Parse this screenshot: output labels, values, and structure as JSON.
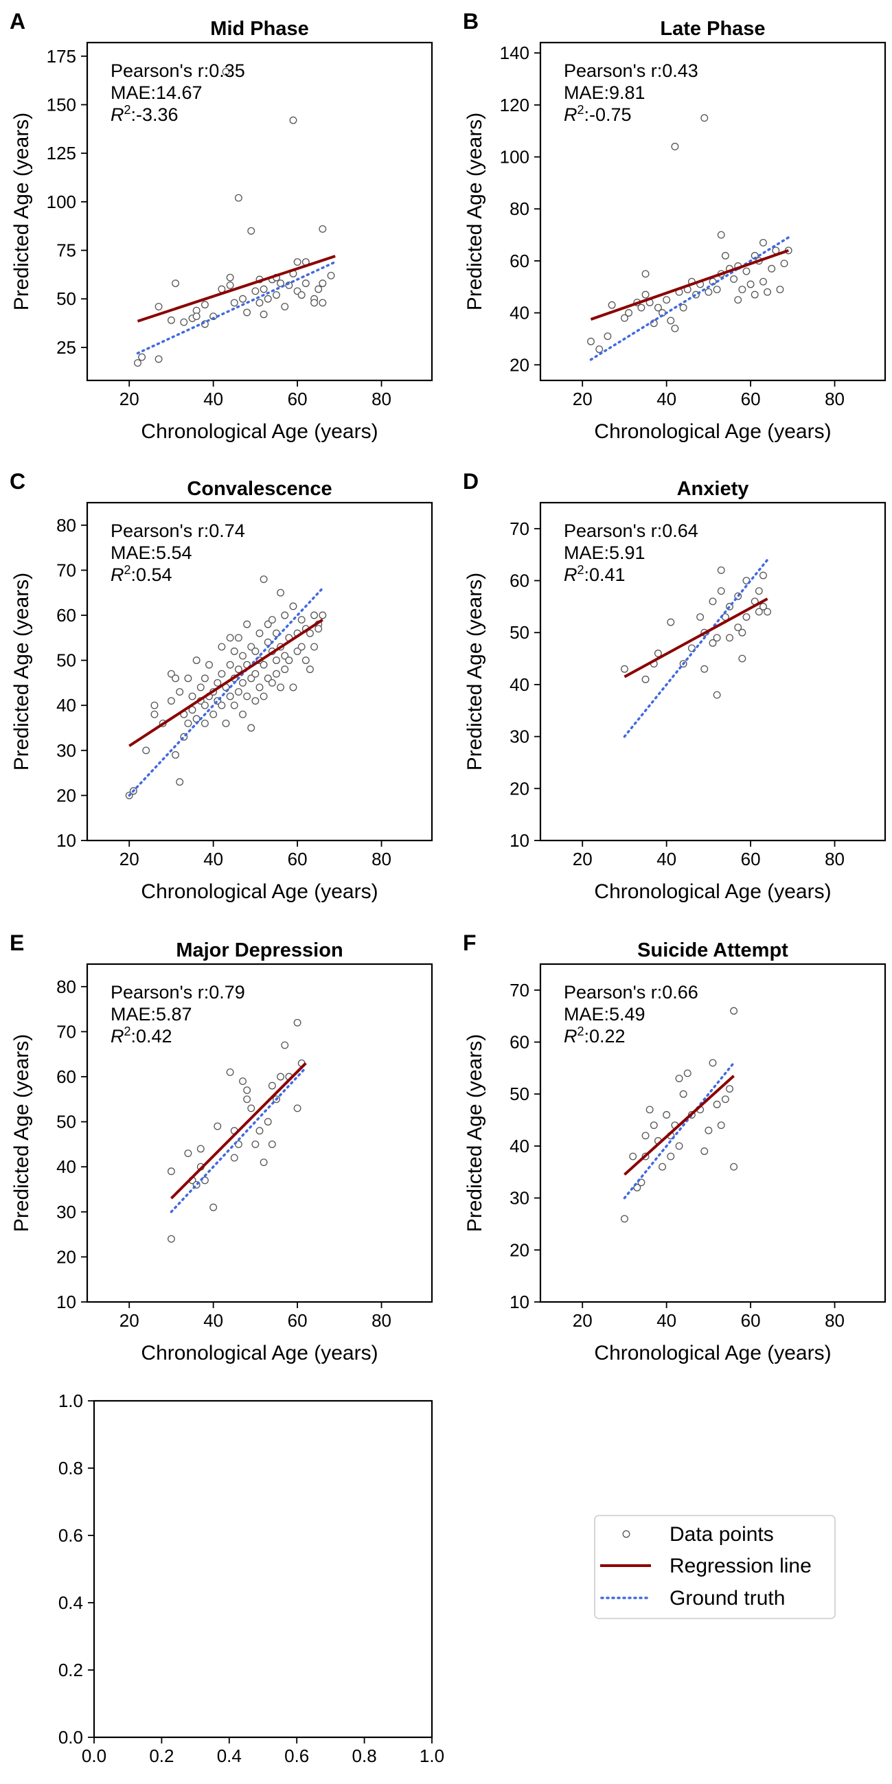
{
  "chart_data": [
    {
      "type": "scatter",
      "panel_letter": "A",
      "title": "Mid Phase",
      "xlabel": "Chronological Age (years)",
      "ylabel": "Predicted Age (years)",
      "xlim": [
        10,
        92
      ],
      "ylim": [
        8,
        182
      ],
      "xticks": [
        20,
        40,
        60,
        80
      ],
      "yticks": [
        25,
        50,
        75,
        100,
        125,
        150,
        175
      ],
      "stats": [
        "Pearson's r:0.35",
        "MAE:14.67",
        "R²:-3.36"
      ],
      "points": [
        [
          22,
          17
        ],
        [
          23,
          20
        ],
        [
          27,
          19
        ],
        [
          27,
          46
        ],
        [
          30,
          39
        ],
        [
          31,
          58
        ],
        [
          33,
          38
        ],
        [
          35,
          40
        ],
        [
          36,
          44
        ],
        [
          36,
          41
        ],
        [
          38,
          37
        ],
        [
          38,
          47
        ],
        [
          40,
          41
        ],
        [
          42,
          55
        ],
        [
          43,
          167
        ],
        [
          44,
          57
        ],
        [
          44,
          61
        ],
        [
          45,
          48
        ],
        [
          46,
          102
        ],
        [
          47,
          50
        ],
        [
          48,
          43
        ],
        [
          49,
          85
        ],
        [
          50,
          54
        ],
        [
          51,
          60
        ],
        [
          51,
          48
        ],
        [
          52,
          42
        ],
        [
          52,
          55
        ],
        [
          53,
          50
        ],
        [
          54,
          60
        ],
        [
          55,
          61
        ],
        [
          55,
          52
        ],
        [
          56,
          58
        ],
        [
          57,
          46
        ],
        [
          58,
          57
        ],
        [
          59,
          142
        ],
        [
          59,
          63
        ],
        [
          60,
          54
        ],
        [
          60,
          69
        ],
        [
          61,
          52
        ],
        [
          62,
          58
        ],
        [
          62,
          69
        ],
        [
          64,
          50
        ],
        [
          64,
          48
        ],
        [
          65,
          55
        ],
        [
          66,
          86
        ],
        [
          66,
          58
        ],
        [
          66,
          48
        ],
        [
          68,
          62
        ]
      ],
      "regression": [
        [
          22,
          38.5
        ],
        [
          69,
          72
        ]
      ],
      "ground_truth": [
        [
          22,
          22
        ],
        [
          69,
          69
        ]
      ],
      "grid": false
    },
    {
      "type": "scatter",
      "panel_letter": "B",
      "title": "Late Phase",
      "xlabel": "Chronological Age (years)",
      "ylabel": "Predicted Age (years)",
      "xlim": [
        10,
        92
      ],
      "ylim": [
        14,
        144
      ],
      "xticks": [
        20,
        40,
        60,
        80
      ],
      "yticks": [
        20,
        40,
        60,
        80,
        100,
        120,
        140
      ],
      "stats": [
        "Pearson's r:0.43",
        "MAE:9.81",
        "R²:-0.75"
      ],
      "points": [
        [
          22,
          29
        ],
        [
          24,
          26
        ],
        [
          26,
          31
        ],
        [
          27,
          43
        ],
        [
          30,
          38
        ],
        [
          31,
          40
        ],
        [
          33,
          44
        ],
        [
          34,
          42
        ],
        [
          35,
          55
        ],
        [
          35,
          47
        ],
        [
          36,
          44
        ],
        [
          37,
          36
        ],
        [
          38,
          42
        ],
        [
          39,
          40
        ],
        [
          40,
          45
        ],
        [
          41,
          37
        ],
        [
          42,
          104
        ],
        [
          42,
          34
        ],
        [
          43,
          48
        ],
        [
          44,
          42
        ],
        [
          45,
          49
        ],
        [
          46,
          52
        ],
        [
          47,
          47
        ],
        [
          48,
          51
        ],
        [
          49,
          115
        ],
        [
          50,
          48
        ],
        [
          51,
          52
        ],
        [
          52,
          49
        ],
        [
          53,
          55
        ],
        [
          53,
          70
        ],
        [
          54,
          62
        ],
        [
          55,
          57
        ],
        [
          56,
          53
        ],
        [
          57,
          45
        ],
        [
          57,
          58
        ],
        [
          58,
          49
        ],
        [
          59,
          56
        ],
        [
          60,
          51
        ],
        [
          61,
          62
        ],
        [
          61,
          47
        ],
        [
          62,
          60
        ],
        [
          63,
          52
        ],
        [
          63,
          67
        ],
        [
          64,
          48
        ],
        [
          65,
          57
        ],
        [
          66,
          64
        ],
        [
          67,
          49
        ],
        [
          68,
          59
        ],
        [
          69,
          64
        ]
      ],
      "regression": [
        [
          22,
          37.5
        ],
        [
          69,
          64
        ]
      ],
      "ground_truth": [
        [
          22,
          22
        ],
        [
          69,
          69
        ]
      ],
      "grid": false
    },
    {
      "type": "scatter",
      "panel_letter": "C",
      "title": "Convalescence",
      "xlabel": "Chronological Age (years)",
      "ylabel": "Predicted Age (years)",
      "xlim": [
        10,
        92
      ],
      "ylim": [
        10,
        85
      ],
      "xticks": [
        20,
        40,
        60,
        80
      ],
      "yticks": [
        10,
        20,
        30,
        40,
        50,
        60,
        70,
        80
      ],
      "stats": [
        "Pearson's r:0.74",
        "MAE:5.54",
        "R²:0.54"
      ],
      "points": [
        [
          20,
          20
        ],
        [
          21,
          21
        ],
        [
          24,
          30
        ],
        [
          26,
          38
        ],
        [
          26,
          40
        ],
        [
          28,
          36
        ],
        [
          30,
          47
        ],
        [
          30,
          41
        ],
        [
          31,
          46
        ],
        [
          31,
          29
        ],
        [
          32,
          23
        ],
        [
          32,
          43
        ],
        [
          33,
          33
        ],
        [
          33,
          38
        ],
        [
          34,
          36
        ],
        [
          34,
          46
        ],
        [
          35,
          39
        ],
        [
          35,
          42
        ],
        [
          36,
          50
        ],
        [
          36,
          37
        ],
        [
          37,
          41
        ],
        [
          37,
          44
        ],
        [
          38,
          36
        ],
        [
          38,
          46
        ],
        [
          38,
          40
        ],
        [
          39,
          49
        ],
        [
          39,
          42
        ],
        [
          40,
          43
        ],
        [
          40,
          38
        ],
        [
          41,
          45
        ],
        [
          41,
          41
        ],
        [
          42,
          40
        ],
        [
          42,
          53
        ],
        [
          42,
          47
        ],
        [
          43,
          44
        ],
        [
          43,
          36
        ],
        [
          44,
          55
        ],
        [
          44,
          49
        ],
        [
          44,
          42
        ],
        [
          45,
          52
        ],
        [
          45,
          40
        ],
        [
          45,
          46
        ],
        [
          46,
          48
        ],
        [
          46,
          55
        ],
        [
          46,
          43
        ],
        [
          47,
          51
        ],
        [
          47,
          38
        ],
        [
          47,
          45
        ],
        [
          48,
          58
        ],
        [
          48,
          42
        ],
        [
          48,
          49
        ],
        [
          49,
          35
        ],
        [
          49,
          53
        ],
        [
          49,
          46
        ],
        [
          50,
          47
        ],
        [
          50,
          52
        ],
        [
          50,
          41
        ],
        [
          51,
          56
        ],
        [
          51,
          44
        ],
        [
          51,
          50
        ],
        [
          52,
          68
        ],
        [
          52,
          49
        ],
        [
          52,
          42
        ],
        [
          53,
          58
        ],
        [
          53,
          54
        ],
        [
          53,
          46
        ],
        [
          54,
          52
        ],
        [
          54,
          45
        ],
        [
          54,
          59
        ],
        [
          55,
          50
        ],
        [
          55,
          56
        ],
        [
          55,
          47
        ],
        [
          56,
          53
        ],
        [
          56,
          65
        ],
        [
          56,
          44
        ],
        [
          57,
          51
        ],
        [
          57,
          60
        ],
        [
          57,
          48
        ],
        [
          58,
          55
        ],
        [
          58,
          50
        ],
        [
          59,
          62
        ],
        [
          59,
          44
        ],
        [
          60,
          56
        ],
        [
          60,
          52
        ],
        [
          61,
          59
        ],
        [
          61,
          53
        ],
        [
          62,
          50
        ],
        [
          62,
          57
        ],
        [
          63,
          56
        ],
        [
          63,
          48
        ],
        [
          64,
          60
        ],
        [
          64,
          53
        ],
        [
          65,
          58
        ],
        [
          65,
          57
        ],
        [
          66,
          60
        ]
      ],
      "regression": [
        [
          20,
          31
        ],
        [
          66,
          59
        ]
      ],
      "ground_truth": [
        [
          20,
          20
        ],
        [
          66,
          66
        ]
      ],
      "grid": false
    },
    {
      "type": "scatter",
      "panel_letter": "D",
      "title": "Anxiety",
      "xlabel": "Chronological Age (years)",
      "ylabel": "Predicted Age (years)",
      "xlim": [
        10,
        92
      ],
      "ylim": [
        10,
        75
      ],
      "xticks": [
        20,
        40,
        60,
        80
      ],
      "yticks": [
        10,
        20,
        30,
        40,
        50,
        60,
        70
      ],
      "stats": [
        "Pearson's r:0.64",
        "MAE:5.91",
        "R²:0.41"
      ],
      "points": [
        [
          30,
          43
        ],
        [
          35,
          41
        ],
        [
          37,
          44
        ],
        [
          38,
          46
        ],
        [
          41,
          52
        ],
        [
          44,
          44
        ],
        [
          46,
          47
        ],
        [
          48,
          53
        ],
        [
          49,
          50
        ],
        [
          49,
          43
        ],
        [
          51,
          56
        ],
        [
          51,
          48
        ],
        [
          52,
          38
        ],
        [
          52,
          49
        ],
        [
          53,
          62
        ],
        [
          53,
          58
        ],
        [
          54,
          53
        ],
        [
          55,
          55
        ],
        [
          55,
          49
        ],
        [
          57,
          57
        ],
        [
          57,
          51
        ],
        [
          58,
          45
        ],
        [
          58,
          50
        ],
        [
          59,
          60
        ],
        [
          59,
          53
        ],
        [
          61,
          56
        ],
        [
          62,
          58
        ],
        [
          62,
          54
        ],
        [
          63,
          61
        ],
        [
          63,
          55
        ],
        [
          64,
          54
        ]
      ],
      "regression": [
        [
          30,
          41.5
        ],
        [
          64,
          56.5
        ]
      ],
      "ground_truth": [
        [
          30,
          30
        ],
        [
          64,
          64
        ]
      ],
      "grid": false
    },
    {
      "type": "scatter",
      "panel_letter": "E",
      "title": "Major Depression",
      "xlabel": "Chronological Age (years)",
      "ylabel": "Predicted Age (years)",
      "xlim": [
        10,
        92
      ],
      "ylim": [
        10,
        85
      ],
      "xticks": [
        20,
        40,
        60,
        80
      ],
      "yticks": [
        10,
        20,
        30,
        40,
        50,
        60,
        70,
        80
      ],
      "stats": [
        "Pearson's r:0.79",
        "MAE:5.87",
        "R²:0.42"
      ],
      "points": [
        [
          30,
          39
        ],
        [
          30,
          24
        ],
        [
          34,
          43
        ],
        [
          35,
          37
        ],
        [
          36,
          36
        ],
        [
          37,
          40
        ],
        [
          37,
          44
        ],
        [
          38,
          37
        ],
        [
          40,
          31
        ],
        [
          41,
          49
        ],
        [
          44,
          61
        ],
        [
          45,
          42
        ],
        [
          45,
          48
        ],
        [
          46,
          45
        ],
        [
          47,
          59
        ],
        [
          48,
          55
        ],
        [
          48,
          57
        ],
        [
          49,
          53
        ],
        [
          50,
          45
        ],
        [
          51,
          48
        ],
        [
          52,
          41
        ],
        [
          53,
          50
        ],
        [
          54,
          45
        ],
        [
          54,
          58
        ],
        [
          55,
          55
        ],
        [
          56,
          60
        ],
        [
          57,
          67
        ],
        [
          58,
          60
        ],
        [
          60,
          72
        ],
        [
          60,
          53
        ],
        [
          61,
          63
        ]
      ],
      "regression": [
        [
          30,
          33
        ],
        [
          62,
          63
        ]
      ],
      "ground_truth": [
        [
          30,
          30
        ],
        [
          62,
          62
        ]
      ],
      "grid": false
    },
    {
      "type": "scatter",
      "panel_letter": "F",
      "title": "Suicide Attempt",
      "xlabel": "Chronological Age (years)",
      "ylabel": "Predicted Age (years)",
      "xlim": [
        10,
        92
      ],
      "ylim": [
        10,
        75
      ],
      "xticks": [
        20,
        40,
        60,
        80
      ],
      "yticks": [
        10,
        20,
        30,
        40,
        50,
        60,
        70
      ],
      "stats": [
        "Pearson's r:0.66",
        "MAE:5.49",
        "R²:0.22"
      ],
      "points": [
        [
          30,
          26
        ],
        [
          32,
          38
        ],
        [
          33,
          32
        ],
        [
          34,
          33
        ],
        [
          35,
          42
        ],
        [
          35,
          38
        ],
        [
          36,
          47
        ],
        [
          37,
          44
        ],
        [
          38,
          41
        ],
        [
          39,
          36
        ],
        [
          40,
          46
        ],
        [
          41,
          38
        ],
        [
          41,
          42
        ],
        [
          42,
          44
        ],
        [
          43,
          53
        ],
        [
          43,
          40
        ],
        [
          44,
          50
        ],
        [
          45,
          54
        ],
        [
          46,
          46
        ],
        [
          48,
          47
        ],
        [
          49,
          39
        ],
        [
          50,
          43
        ],
        [
          51,
          56
        ],
        [
          52,
          48
        ],
        [
          53,
          44
        ],
        [
          54,
          49
        ],
        [
          55,
          51
        ],
        [
          56,
          66
        ],
        [
          56,
          36
        ]
      ],
      "regression": [
        [
          30,
          34.5
        ],
        [
          56,
          53.5
        ]
      ],
      "ground_truth": [
        [
          30,
          30
        ],
        [
          56,
          56
        ]
      ],
      "grid": false
    },
    {
      "type": "scatter",
      "panel_letter": "",
      "title": "",
      "xlabel": "",
      "ylabel": "",
      "xlim": [
        0,
        1
      ],
      "ylim": [
        0,
        1
      ],
      "xticks": [
        0.0,
        0.2,
        0.4,
        0.6,
        0.8,
        1.0
      ],
      "yticks": [
        0.0,
        0.2,
        0.4,
        0.6,
        0.8,
        1.0
      ],
      "tick_decimals": 1,
      "stats": [],
      "points": [],
      "grid": false
    }
  ],
  "legend": {
    "placement": "bottom-right",
    "entries": [
      "Data points",
      "Regression line",
      "Ground truth"
    ]
  },
  "colors": {
    "regression": "#8b0000",
    "ground_truth": "#4169e1",
    "points": "#555555"
  }
}
